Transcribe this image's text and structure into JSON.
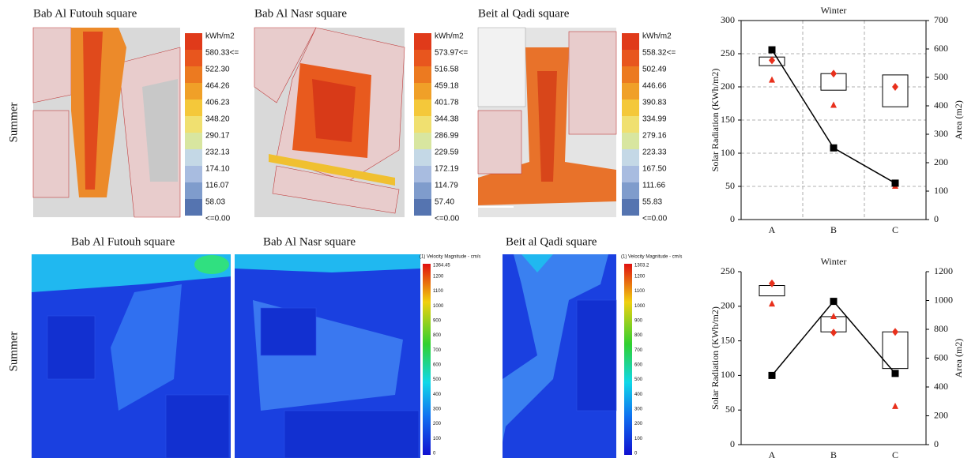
{
  "row_labels": [
    "Summer",
    "Summer"
  ],
  "maps": [
    {
      "title": "Bab Al Futouh square",
      "legend": [
        "kWh/m2",
        "580.33<=",
        "522.30",
        "464.26",
        "406.23",
        "348.20",
        "290.17",
        "232.13",
        "174.10",
        "116.07",
        "58.03",
        "<=0.00"
      ]
    },
    {
      "title": "Bab Al Nasr square",
      "legend": [
        "kWh/m2",
        "573.97<=",
        "516.58",
        "459.18",
        "401.78",
        "344.38",
        "286.99",
        "229.59",
        "172.19",
        "114.79",
        "57.40",
        "<=0.00"
      ]
    },
    {
      "title": "Beit al Qadi square",
      "legend": [
        "kWh/m2",
        "558.32<=",
        "502.49",
        "446.66",
        "390.83",
        "334.99",
        "279.16",
        "223.33",
        "167.50",
        "111.66",
        "55.83",
        "<=0.00"
      ]
    }
  ],
  "flow_maps": [
    {
      "title": "Bab Al Futouh square"
    },
    {
      "title": "Bab Al Nasr square",
      "legend": {
        "title": "(1) Velocity Magnitude - cm/s",
        "max": "1364.45",
        "ticks": [
          "1200",
          "1100",
          "1000",
          "900",
          "800",
          "700",
          "600",
          "500",
          "400",
          "300",
          "200",
          "100",
          "0"
        ]
      }
    },
    {
      "title": "Beit al Qadi square",
      "legend": {
        "title": "(1) Velocity Magnitude - cm/s",
        "max": "1303.2",
        "ticks": [
          "1200",
          "1100",
          "1000",
          "900",
          "800",
          "700",
          "600",
          "500",
          "400",
          "300",
          "200",
          "100",
          "0"
        ]
      }
    }
  ],
  "chart_data": [
    {
      "type": "box",
      "title": "Winter",
      "y_label": "Solar Radiation (KWh/m2)",
      "y2_label": "Area (m2)",
      "categories": [
        "A",
        "B",
        "C"
      ],
      "ylim": [
        0,
        300
      ],
      "yticks": [
        0,
        50,
        100,
        150,
        200,
        250,
        300
      ],
      "y2lim": [
        0,
        700
      ],
      "y2ticks": [
        0,
        100,
        200,
        300,
        400,
        500,
        600,
        700
      ],
      "boxes": [
        [
          232,
          245
        ],
        [
          195,
          220
        ],
        [
          170,
          218
        ]
      ],
      "diamonds": [
        240,
        220,
        200
      ],
      "triangles": [
        210,
        172,
        50
      ],
      "marker_color": "#e8301c",
      "series": [
        {
          "axis": "y2",
          "color": "#000000",
          "values": [
            597,
            252,
            128
          ]
        }
      ],
      "grid": true
    },
    {
      "type": "box",
      "title": "Winter",
      "y_label": "Solar Radiation (KWh/m2)",
      "y2_label": "Area (m2)",
      "categories": [
        "A",
        "B",
        "C"
      ],
      "ylim": [
        0,
        250
      ],
      "yticks": [
        0,
        50,
        100,
        150,
        200,
        250
      ],
      "y2lim": [
        0,
        1200
      ],
      "y2ticks": [
        0,
        200,
        400,
        600,
        800,
        1000,
        1200
      ],
      "boxes": [
        [
          215,
          230
        ],
        [
          163,
          185
        ],
        [
          110,
          163
        ]
      ],
      "diamonds": [
        233,
        162,
        163
      ],
      "triangles": [
        203,
        185,
        55
      ],
      "marker_color": "#e8301c",
      "series": [
        {
          "axis": "y2",
          "color": "#000000",
          "values": [
            480,
            994,
            494
          ]
        }
      ],
      "grid": false
    }
  ]
}
